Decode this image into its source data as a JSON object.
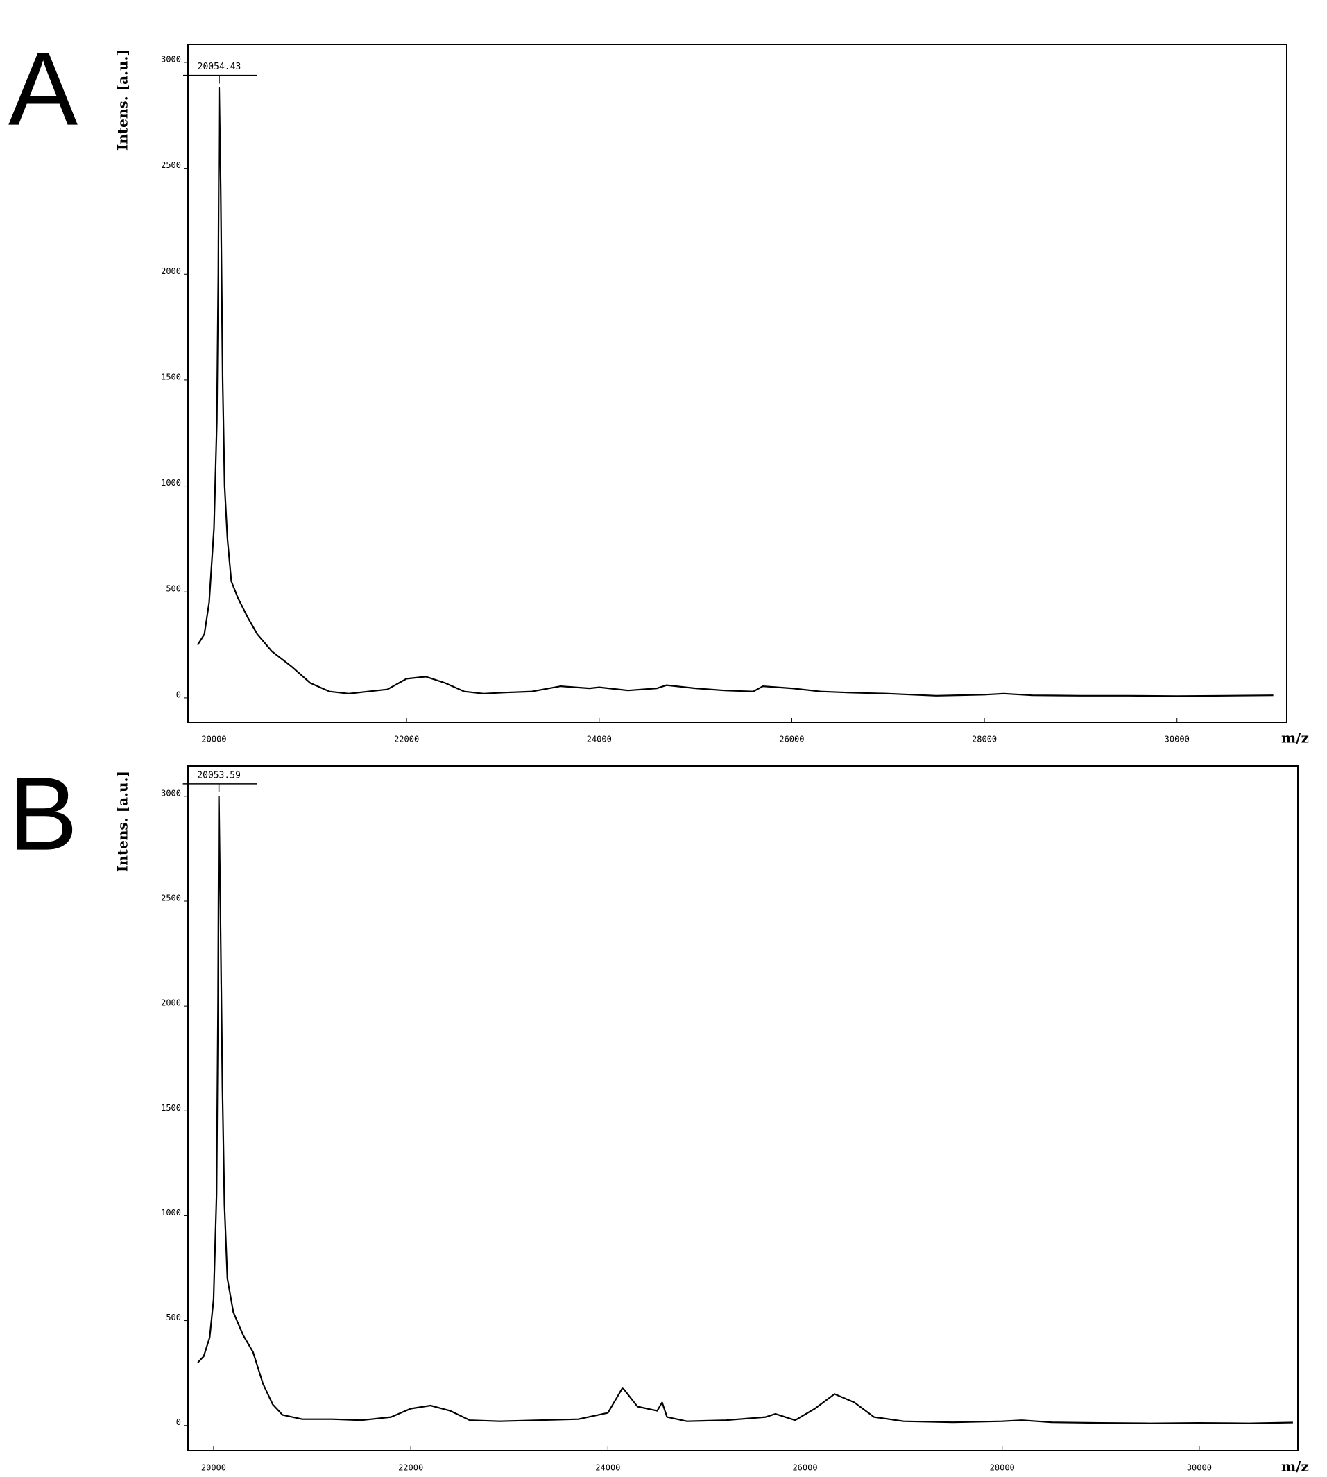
{
  "chart_data": [
    {
      "type": "line",
      "panel_label": "A",
      "x_label": "m/z",
      "y_label": "Intens. [a.u.]",
      "color": "#000000",
      "annotation": {
        "text": "20054.43",
        "x": 20054,
        "y": 2880
      },
      "xlim": [
        19730,
        31140
      ],
      "ylim": [
        -115,
        3085
      ],
      "xticks": [
        20000,
        22000,
        24000,
        26000,
        28000,
        30000
      ],
      "yticks": [
        0,
        500,
        1000,
        1500,
        2000,
        2500,
        3000
      ],
      "x": [
        19830,
        19900,
        19950,
        20000,
        20030,
        20045,
        20054,
        20070,
        20090,
        20110,
        20140,
        20180,
        20250,
        20350,
        20450,
        20600,
        20800,
        21000,
        21200,
        21400,
        21600,
        21800,
        22000,
        22200,
        22400,
        22600,
        22800,
        23000,
        23300,
        23600,
        23900,
        24000,
        24300,
        24600,
        24700,
        25000,
        25300,
        25600,
        25700,
        26000,
        26300,
        26600,
        27000,
        27500,
        28000,
        28200,
        28500,
        29000,
        29500,
        30000,
        30500,
        31000
      ],
      "values": [
        250,
        300,
        450,
        800,
        1300,
        2000,
        2880,
        2400,
        1500,
        1000,
        750,
        550,
        470,
        380,
        300,
        220,
        150,
        70,
        30,
        20,
        30,
        40,
        90,
        100,
        70,
        30,
        20,
        25,
        30,
        55,
        45,
        50,
        35,
        45,
        60,
        45,
        35,
        30,
        55,
        45,
        30,
        25,
        20,
        10,
        15,
        20,
        12,
        10,
        10,
        8,
        10,
        12
      ]
    },
    {
      "type": "line",
      "panel_label": "B",
      "x_label": "m/z",
      "y_label": "Intens. [a.u.]",
      "color": "#000000",
      "annotation": {
        "text": "20053.59",
        "x": 20054,
        "y": 3000
      },
      "xlim": [
        19740,
        31000
      ],
      "ylim": [
        -120,
        3145
      ],
      "xticks": [
        20000,
        22000,
        24000,
        26000,
        28000,
        30000
      ],
      "yticks": [
        0,
        500,
        1000,
        1500,
        2000,
        2500,
        3000
      ],
      "x": [
        19840,
        19900,
        19960,
        20000,
        20030,
        20045,
        20054,
        20070,
        20090,
        20110,
        20140,
        20200,
        20300,
        20400,
        20500,
        20600,
        20700,
        20900,
        21200,
        21500,
        21800,
        22000,
        22200,
        22400,
        22600,
        22900,
        23300,
        23700,
        24000,
        24150,
        24300,
        24500,
        24550,
        24600,
        24800,
        25200,
        25600,
        25700,
        25900,
        26100,
        26300,
        26500,
        26700,
        27000,
        27500,
        28000,
        28200,
        28500,
        29000,
        29500,
        30000,
        30500,
        30950
      ],
      "values": [
        300,
        330,
        420,
        600,
        1100,
        2000,
        3000,
        2400,
        1600,
        1050,
        700,
        540,
        430,
        350,
        200,
        100,
        50,
        30,
        30,
        25,
        40,
        80,
        95,
        70,
        25,
        20,
        25,
        30,
        60,
        180,
        90,
        70,
        110,
        40,
        20,
        25,
        40,
        55,
        25,
        80,
        150,
        110,
        40,
        20,
        15,
        20,
        25,
        15,
        12,
        10,
        12,
        10,
        14
      ]
    }
  ]
}
